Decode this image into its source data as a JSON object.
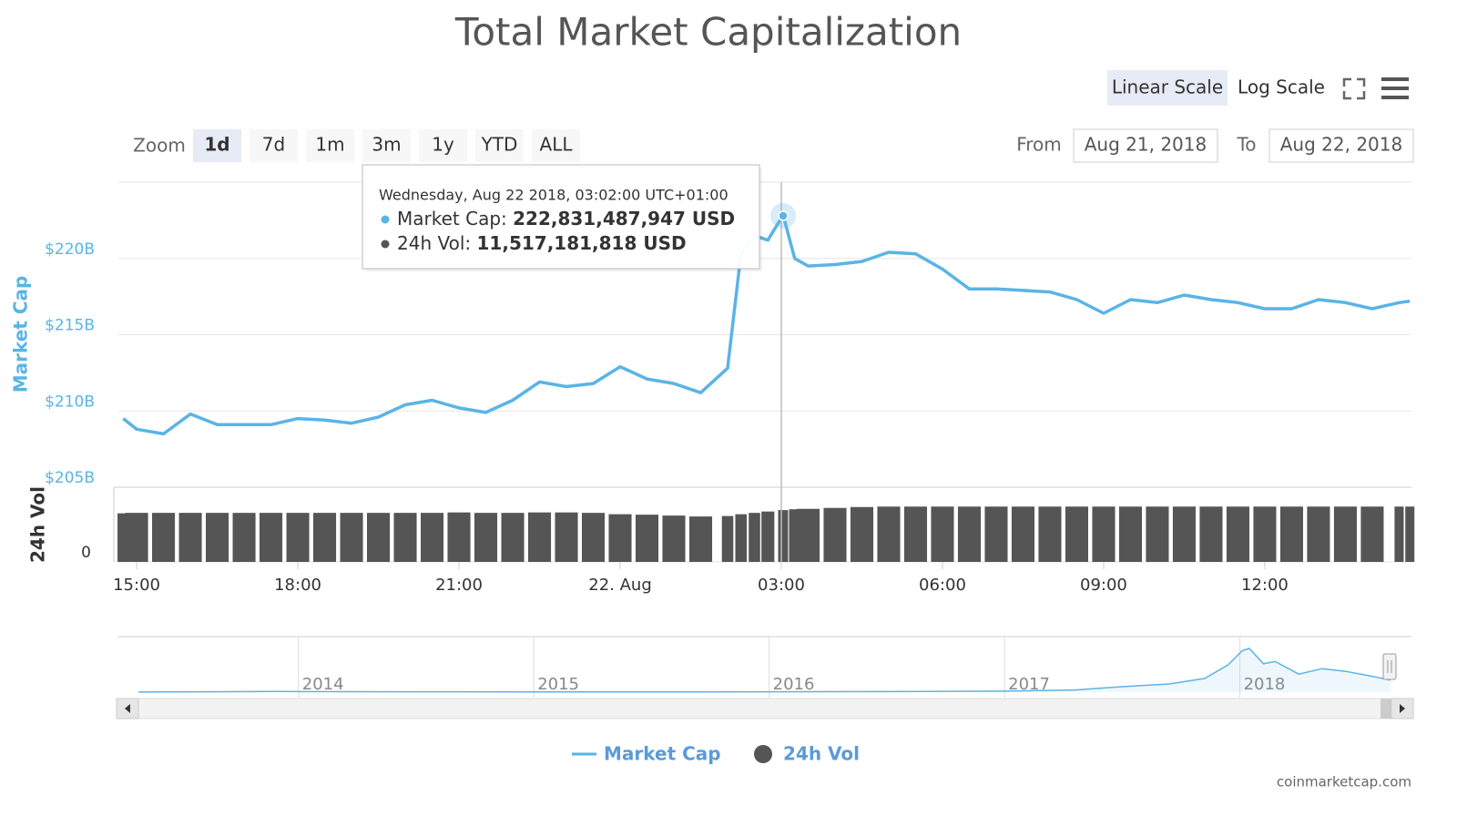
{
  "chart_data": [
    {
      "type": "line",
      "title": "Total Market Capitalization",
      "y_label": "Market Cap",
      "y2_label": "24h Vol",
      "x": [
        14.75,
        15,
        15.5,
        16,
        16.5,
        17,
        17.5,
        18,
        18.5,
        19,
        19.5,
        20,
        20.5,
        21,
        21.5,
        22,
        22.5,
        23,
        23.5,
        24,
        24.5,
        25,
        25.5,
        26,
        26.25,
        26.5,
        26.75,
        27.0333,
        27.25,
        27.5,
        28,
        28.5,
        29,
        29.5,
        30,
        30.5,
        31,
        31.5,
        32,
        32.5,
        33,
        33.5,
        34,
        34.5,
        35,
        35.5,
        36,
        36.5,
        37,
        37.5,
        38,
        38.5,
        38.7
      ],
      "xlim": [
        14.66,
        38.73
      ],
      "xticks": [
        {
          "value": 15,
          "label": "15:00"
        },
        {
          "value": 18,
          "label": "18:00"
        },
        {
          "value": 21,
          "label": "21:00"
        },
        {
          "value": 24,
          "label": "22. Aug"
        },
        {
          "value": 27,
          "label": "03:00"
        },
        {
          "value": 30,
          "label": "06:00"
        },
        {
          "value": 33,
          "label": "09:00"
        },
        {
          "value": 36,
          "label": "12:00"
        }
      ],
      "ylim": [
        205,
        225
      ],
      "yticks": [
        {
          "value": 205,
          "label": "$205B"
        },
        {
          "value": 210,
          "label": "$210B"
        },
        {
          "value": 215,
          "label": "$215B"
        },
        {
          "value": 220,
          "label": "$220B"
        }
      ],
      "y2lim": [
        0,
        16.6
      ],
      "y2ticks": [
        0
      ],
      "grid": true,
      "series": [
        {
          "name": "Market Cap",
          "color": "#5ab4e5",
          "values": [
            209.5,
            208.8,
            208.5,
            209.8,
            209.1,
            209.1,
            209.1,
            209.5,
            209.4,
            209.2,
            209.6,
            210.4,
            210.7,
            210.2,
            209.9,
            210.7,
            211.9,
            211.6,
            211.8,
            212.9,
            212.1,
            211.8,
            211.2,
            212.8,
            220.3,
            221.5,
            221.2,
            222.83,
            220.0,
            219.5,
            219.6,
            219.8,
            220.4,
            220.3,
            219.3,
            218.0,
            218.0,
            217.9,
            217.8,
            217.3,
            216.4,
            217.3,
            217.1,
            217.6,
            217.3,
            217.1,
            216.7,
            216.7,
            217.3,
            217.1,
            216.7,
            217.1,
            217.2
          ]
        },
        {
          "name": "24h Vol",
          "type": "bar",
          "axis": "y2",
          "color": "#555555",
          "values": [
            10.8,
            10.9,
            10.9,
            10.9,
            10.9,
            10.9,
            10.9,
            10.9,
            10.9,
            10.9,
            10.9,
            10.9,
            10.9,
            11.0,
            10.9,
            10.9,
            11.0,
            11.0,
            10.9,
            10.6,
            10.5,
            10.3,
            10.1,
            10.2,
            10.6,
            10.9,
            11.2,
            11.52,
            11.7,
            11.8,
            12.0,
            12.2,
            12.3,
            12.3,
            12.3,
            12.3,
            12.3,
            12.3,
            12.3,
            12.3,
            12.3,
            12.3,
            12.3,
            12.3,
            12.3,
            12.3,
            12.3,
            12.3,
            12.3,
            12.3,
            12.3,
            12.3,
            12.3
          ]
        }
      ]
    },
    {
      "type": "area",
      "x": [
        2013.32,
        2013.9,
        2014.0,
        2014.5,
        2015.0,
        2015.5,
        2016.0,
        2016.5,
        2017.0,
        2017.3,
        2017.5,
        2017.7,
        2017.85,
        2017.95,
        2018.01,
        2018.04,
        2018.1,
        2018.15,
        2018.25,
        2018.35,
        2018.45,
        2018.55,
        2018.64
      ],
      "xlim": [
        2013.32,
        2018.64
      ],
      "xticks": [
        2014,
        2015,
        2016,
        2017,
        2018
      ],
      "ylim": [
        0,
        1000
      ],
      "series": [
        {
          "color": "#5ab4e5",
          "values": [
            1.5,
            12,
            10,
            7,
            4,
            3.5,
            7,
            10,
            18,
            40,
            100,
            150,
            250,
            500,
            760,
            800,
            520,
            560,
            330,
            430,
            380,
            300,
            220
          ]
        }
      ]
    }
  ],
  "ui": {
    "scale_buttons": [
      "Linear Scale",
      "Log Scale"
    ],
    "zoom_label": "Zoom",
    "zoom_buttons": [
      "1d",
      "7d",
      "1m",
      "3m",
      "1y",
      "YTD",
      "ALL"
    ],
    "from_label": "From",
    "from_date": "Aug 21, 2018",
    "to_label": "To",
    "to_date": "Aug 22, 2018",
    "credit": "coinmarketcap.com"
  },
  "tooltip": {
    "header": "Wednesday, Aug 22 2018, 03:02:00 UTC+01:00",
    "rows": [
      {
        "label": "Market Cap:",
        "value": "222,831,487,947 USD"
      },
      {
        "label": "24h Vol:",
        "value": "11,517,181,818 USD"
      }
    ]
  }
}
